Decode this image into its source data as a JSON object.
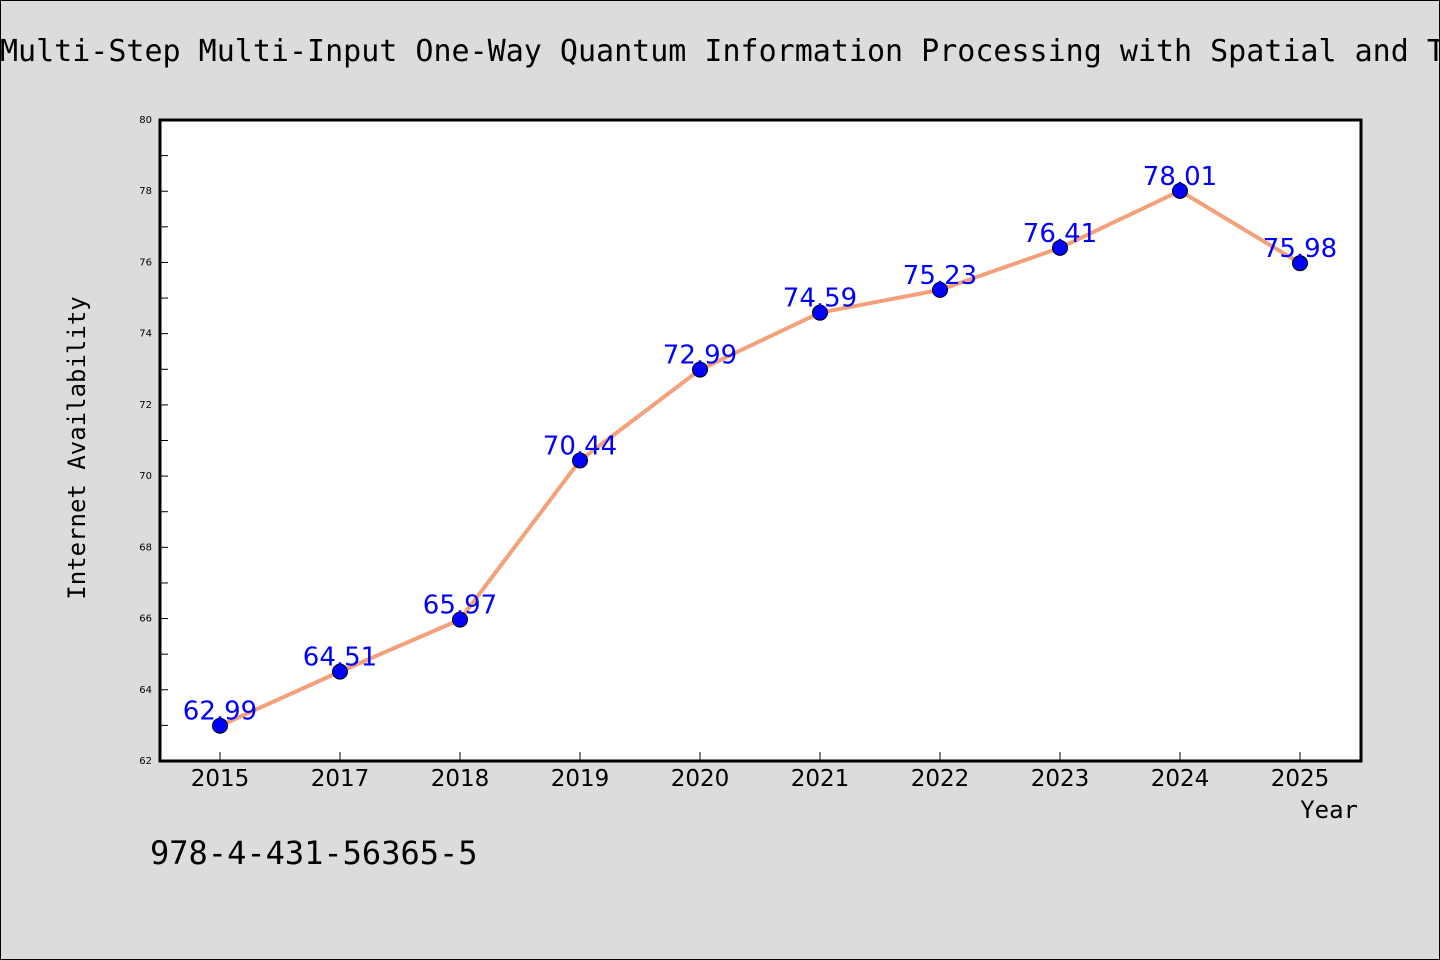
{
  "page": {
    "isbn": "978-4-431-56365-5",
    "background": "#dcdcdc"
  },
  "chart_data": {
    "type": "line",
    "title": "Multi-Step Multi-Input One-Way Quantum Information Processing with Spatial and T",
    "xlabel": "Year",
    "ylabel": "Internet Availability",
    "categories": [
      "2015",
      "2017",
      "2018",
      "2019",
      "2020",
      "2021",
      "2022",
      "2023",
      "2024",
      "2025"
    ],
    "series": [
      {
        "values": [
          62.99,
          64.51,
          65.97,
          70.44,
          72.99,
          74.59,
          75.23,
          76.41,
          78.01,
          75.98
        ],
        "data_labels": [
          "62.99",
          "64.51",
          "65.97",
          "70.44",
          "72.99",
          "74.59",
          "75.23",
          "76.41",
          "78.01",
          "75.98"
        ],
        "line_color": "#f4a07a",
        "marker_color": "#0000ff",
        "label_color": "#0000ff"
      }
    ],
    "ylim": [
      62,
      80
    ],
    "yticks": [
      "62",
      "64",
      "66",
      "68",
      "70",
      "72",
      "74",
      "76",
      "78",
      "80"
    ],
    "grid": false,
    "legend": "none"
  }
}
